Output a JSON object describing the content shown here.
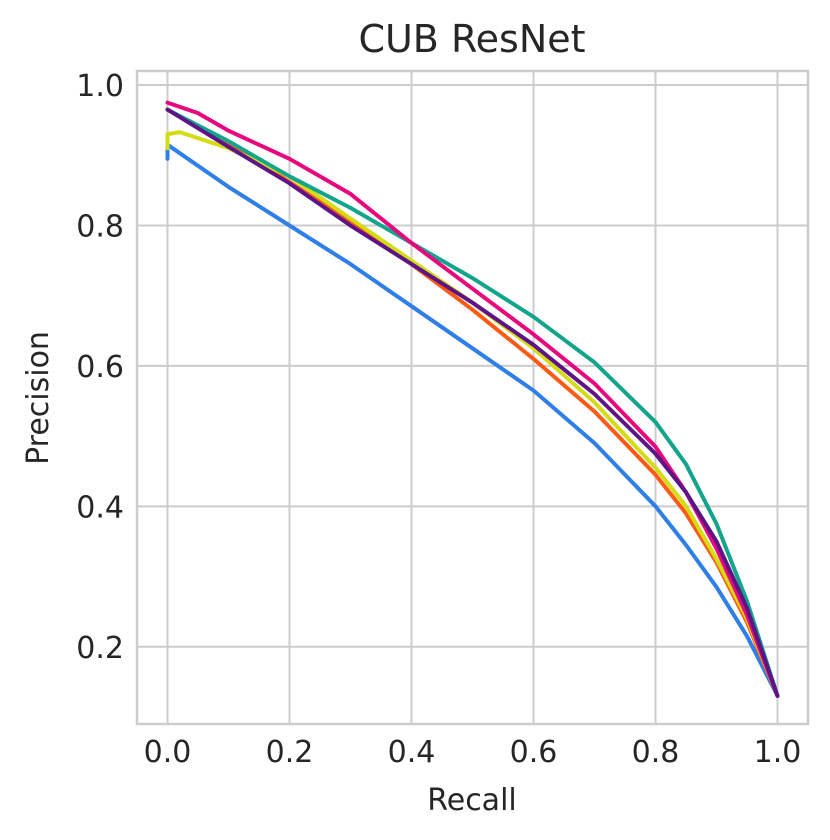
{
  "chart_data": {
    "type": "line",
    "title": "CUB ResNet",
    "xlabel": "Recall",
    "ylabel": "Precision",
    "xlim": [
      -0.05,
      1.05
    ],
    "ylim": [
      0.09,
      1.02
    ],
    "xticks": [
      0.0,
      0.2,
      0.4,
      0.6,
      0.8,
      1.0
    ],
    "xtick_labels": [
      "0.0",
      "0.2",
      "0.4",
      "0.6",
      "0.8",
      "1.0"
    ],
    "yticks": [
      0.2,
      0.4,
      0.6,
      0.8,
      1.0
    ],
    "ytick_labels": [
      "0.2",
      "0.4",
      "0.6",
      "0.8",
      "1.0"
    ],
    "grid": true,
    "series": [
      {
        "color": "#2e7fe8",
        "points": [
          [
            0.0,
            0.895
          ],
          [
            0.0,
            0.915
          ],
          [
            0.1,
            0.855
          ],
          [
            0.2,
            0.8
          ],
          [
            0.3,
            0.745
          ],
          [
            0.4,
            0.685
          ],
          [
            0.5,
            0.625
          ],
          [
            0.6,
            0.565
          ],
          [
            0.7,
            0.49
          ],
          [
            0.8,
            0.4
          ],
          [
            0.85,
            0.345
          ],
          [
            0.9,
            0.285
          ],
          [
            0.95,
            0.215
          ],
          [
            1.0,
            0.13
          ]
        ]
      },
      {
        "color": "#ff5a14",
        "points": [
          [
            0.0,
            0.965
          ],
          [
            0.1,
            0.918
          ],
          [
            0.2,
            0.862
          ],
          [
            0.3,
            0.805
          ],
          [
            0.4,
            0.745
          ],
          [
            0.5,
            0.68
          ],
          [
            0.6,
            0.61
          ],
          [
            0.7,
            0.535
          ],
          [
            0.8,
            0.445
          ],
          [
            0.85,
            0.39
          ],
          [
            0.9,
            0.32
          ],
          [
            0.95,
            0.235
          ],
          [
            1.0,
            0.13
          ]
        ]
      },
      {
        "color": "#d4dc14",
        "points": [
          [
            0.0,
            0.91
          ],
          [
            0.0,
            0.93
          ],
          [
            0.02,
            0.933
          ],
          [
            0.1,
            0.91
          ],
          [
            0.2,
            0.87
          ],
          [
            0.3,
            0.81
          ],
          [
            0.4,
            0.75
          ],
          [
            0.5,
            0.69
          ],
          [
            0.6,
            0.625
          ],
          [
            0.7,
            0.548
          ],
          [
            0.8,
            0.455
          ],
          [
            0.85,
            0.4
          ],
          [
            0.9,
            0.325
          ],
          [
            0.95,
            0.24
          ],
          [
            1.0,
            0.13
          ]
        ]
      },
      {
        "color": "#12a58c",
        "points": [
          [
            0.0,
            0.965
          ],
          [
            0.1,
            0.92
          ],
          [
            0.2,
            0.87
          ],
          [
            0.3,
            0.825
          ],
          [
            0.4,
            0.775
          ],
          [
            0.5,
            0.725
          ],
          [
            0.6,
            0.67
          ],
          [
            0.7,
            0.605
          ],
          [
            0.8,
            0.52
          ],
          [
            0.85,
            0.46
          ],
          [
            0.9,
            0.375
          ],
          [
            0.95,
            0.265
          ],
          [
            1.0,
            0.13
          ]
        ]
      },
      {
        "color": "#e6087c",
        "points": [
          [
            0.0,
            0.975
          ],
          [
            0.05,
            0.96
          ],
          [
            0.1,
            0.935
          ],
          [
            0.2,
            0.895
          ],
          [
            0.3,
            0.845
          ],
          [
            0.4,
            0.775
          ],
          [
            0.5,
            0.71
          ],
          [
            0.6,
            0.645
          ],
          [
            0.7,
            0.575
          ],
          [
            0.8,
            0.485
          ],
          [
            0.85,
            0.42
          ],
          [
            0.9,
            0.34
          ],
          [
            0.95,
            0.245
          ],
          [
            1.0,
            0.13
          ]
        ]
      },
      {
        "color": "#5e1487",
        "points": [
          [
            0.0,
            0.965
          ],
          [
            0.1,
            0.912
          ],
          [
            0.2,
            0.86
          ],
          [
            0.3,
            0.8
          ],
          [
            0.4,
            0.745
          ],
          [
            0.5,
            0.69
          ],
          [
            0.6,
            0.63
          ],
          [
            0.7,
            0.56
          ],
          [
            0.8,
            0.475
          ],
          [
            0.85,
            0.42
          ],
          [
            0.9,
            0.35
          ],
          [
            0.95,
            0.255
          ],
          [
            1.0,
            0.13
          ]
        ]
      }
    ]
  }
}
